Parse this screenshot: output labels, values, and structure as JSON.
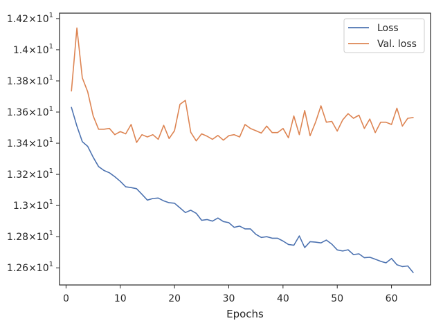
{
  "chart_data": {
    "type": "line",
    "title": "",
    "xlabel": "Epochs",
    "ylabel": "",
    "xlim": [
      -1.2,
      67.2
    ],
    "ylim": [
      12.49,
      14.235
    ],
    "x_ticks": [
      {
        "value": 0,
        "label": "0"
      },
      {
        "value": 10,
        "label": "10"
      },
      {
        "value": 20,
        "label": "20"
      },
      {
        "value": 30,
        "label": "30"
      },
      {
        "value": 40,
        "label": "40"
      },
      {
        "value": 50,
        "label": "50"
      },
      {
        "value": 60,
        "label": "60"
      }
    ],
    "y_ticks": [
      {
        "value": 12.6,
        "mant": "1.26",
        "exp": "1"
      },
      {
        "value": 12.8,
        "mant": "1.28",
        "exp": "1"
      },
      {
        "value": 13.0,
        "mant": "1.3",
        "exp": "1"
      },
      {
        "value": 13.2,
        "mant": "1.32",
        "exp": "1"
      },
      {
        "value": 13.4,
        "mant": "1.34",
        "exp": "1"
      },
      {
        "value": 13.6,
        "mant": "1.36",
        "exp": "1"
      },
      {
        "value": 13.8,
        "mant": "1.38",
        "exp": "1"
      },
      {
        "value": 14.0,
        "mant": "1.4",
        "exp": "1"
      },
      {
        "value": 14.2,
        "mant": "1.42",
        "exp": "1"
      }
    ],
    "grid": false,
    "legend_position": "top-right",
    "series": [
      {
        "name": "Loss",
        "color": "#4c72b0",
        "x": [
          1,
          2,
          3,
          4,
          5,
          6,
          7,
          8,
          9,
          10,
          11,
          12,
          13,
          14,
          15,
          16,
          17,
          18,
          19,
          20,
          21,
          22,
          23,
          24,
          25,
          26,
          27,
          28,
          29,
          30,
          31,
          32,
          33,
          34,
          35,
          36,
          37,
          38,
          39,
          40,
          41,
          42,
          43,
          44,
          45,
          46,
          47,
          48,
          49,
          50,
          51,
          52,
          53,
          54,
          55,
          56,
          57,
          58,
          59,
          60,
          61,
          62,
          63,
          64
        ],
        "values": [
          13.63,
          13.51,
          13.41,
          13.38,
          13.31,
          13.25,
          13.225,
          13.21,
          13.185,
          13.155,
          13.12,
          13.115,
          13.108,
          13.072,
          13.035,
          13.045,
          13.048,
          13.03,
          13.018,
          13.015,
          12.985,
          12.955,
          12.97,
          12.95,
          12.905,
          12.91,
          12.9,
          12.92,
          12.897,
          12.89,
          12.86,
          12.868,
          12.85,
          12.85,
          12.815,
          12.795,
          12.8,
          12.79,
          12.79,
          12.772,
          12.75,
          12.745,
          12.805,
          12.73,
          12.768,
          12.765,
          12.76,
          12.778,
          12.752,
          12.715,
          12.708,
          12.716,
          12.685,
          12.69,
          12.665,
          12.668,
          12.655,
          12.642,
          12.632,
          12.66,
          12.62,
          12.608,
          12.612,
          12.57
        ]
      },
      {
        "name": "Val. loss",
        "color": "#dd8452",
        "x": [
          1,
          2,
          3,
          4,
          5,
          6,
          7,
          8,
          9,
          10,
          11,
          12,
          13,
          14,
          15,
          16,
          17,
          18,
          19,
          20,
          21,
          22,
          23,
          24,
          25,
          26,
          27,
          28,
          29,
          30,
          31,
          32,
          33,
          34,
          35,
          36,
          37,
          38,
          39,
          40,
          41,
          42,
          43,
          44,
          45,
          46,
          47,
          48,
          49,
          50,
          51,
          52,
          53,
          54,
          55,
          56,
          57,
          58,
          59,
          60,
          61,
          62,
          63,
          64
        ],
        "values": [
          13.735,
          14.14,
          13.82,
          13.73,
          13.575,
          13.49,
          13.49,
          13.495,
          13.455,
          13.475,
          13.46,
          13.52,
          13.405,
          13.455,
          13.44,
          13.455,
          13.425,
          13.515,
          13.43,
          13.48,
          13.65,
          13.675,
          13.47,
          13.415,
          13.46,
          13.445,
          13.425,
          13.45,
          13.42,
          13.448,
          13.455,
          13.44,
          13.52,
          13.495,
          13.48,
          13.465,
          13.51,
          13.468,
          13.468,
          13.495,
          13.435,
          13.575,
          13.455,
          13.61,
          13.448,
          13.535,
          13.64,
          13.535,
          13.54,
          13.478,
          13.55,
          13.59,
          13.56,
          13.58,
          13.495,
          13.555,
          13.468,
          13.535,
          13.535,
          13.52,
          13.625,
          13.51,
          13.56,
          13.565
        ]
      }
    ]
  }
}
